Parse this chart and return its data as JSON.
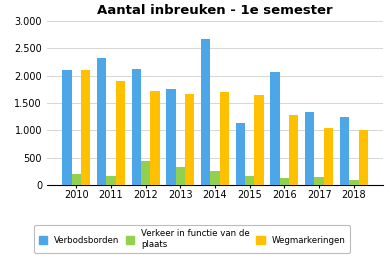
{
  "title": "Aantal inbreuken - 1e semester",
  "years": [
    2010,
    2011,
    2012,
    2013,
    2014,
    2015,
    2016,
    2017,
    2018
  ],
  "verbodsborden": [
    2100,
    2320,
    2130,
    1760,
    2680,
    1130,
    2060,
    1330,
    1240
  ],
  "verkeer": [
    200,
    170,
    440,
    330,
    250,
    155,
    130,
    150,
    80
  ],
  "wegmarkeringen": [
    2100,
    1900,
    1720,
    1670,
    1700,
    1640,
    1280,
    1050,
    1000
  ],
  "color_verbods": "#4da6e8",
  "color_verkeer": "#92d050",
  "color_wegmark": "#ffc000",
  "legend_labels": [
    "Verbodsborden",
    "Verkeer in functie van de\nplaats",
    "Wegmarkeringen"
  ],
  "ylim": [
    0,
    3000
  ],
  "yticks": [
    0,
    500,
    1000,
    1500,
    2000,
    2500,
    3000
  ],
  "ytick_labels": [
    "0",
    "500",
    "1.000",
    "1.500",
    "2.000",
    "2.500",
    "3.000"
  ],
  "bg_color": "#ffffff",
  "grid_color": "#d0d0d0",
  "bar_width": 0.27
}
